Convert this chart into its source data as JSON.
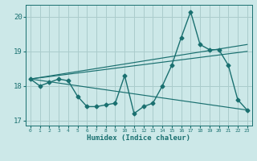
{
  "xlabel": "Humidex (Indice chaleur)",
  "bg_color": "#cce8e8",
  "grid_color": "#aacccc",
  "line_color": "#1a7070",
  "outer_bg": "#cce8e8",
  "xlim_min": -0.5,
  "xlim_max": 23.5,
  "ylim_min": 16.85,
  "ylim_max": 20.35,
  "yticks": [
    17,
    18,
    19,
    20
  ],
  "xticks": [
    0,
    1,
    2,
    3,
    4,
    5,
    6,
    7,
    8,
    9,
    10,
    11,
    12,
    13,
    14,
    15,
    16,
    17,
    18,
    19,
    20,
    21,
    22,
    23
  ],
  "main_line_x": [
    0,
    1,
    2,
    3,
    4,
    5,
    6,
    7,
    8,
    9,
    10,
    11,
    12,
    13,
    14,
    15,
    16,
    17,
    18,
    19,
    20,
    21,
    22,
    23
  ],
  "main_line_y": [
    18.2,
    18.0,
    18.1,
    18.2,
    18.15,
    17.7,
    17.4,
    17.4,
    17.45,
    17.5,
    18.3,
    17.2,
    17.4,
    17.5,
    18.0,
    18.6,
    19.4,
    20.15,
    19.2,
    19.05,
    19.05,
    18.6,
    17.6,
    17.3
  ],
  "trend1_x": [
    0,
    23
  ],
  "trend1_y": [
    18.2,
    19.0
  ],
  "trend2_x": [
    0,
    23
  ],
  "trend2_y": [
    18.2,
    17.3
  ],
  "trend3_x": [
    0,
    23
  ],
  "trend3_y": [
    18.2,
    19.2
  ]
}
